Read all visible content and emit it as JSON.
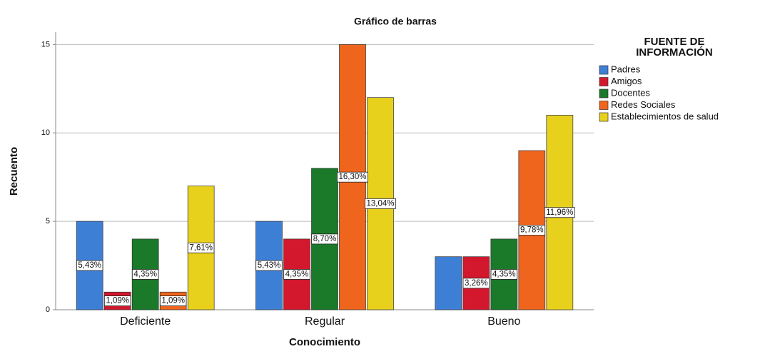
{
  "chart_data": {
    "type": "bar",
    "title": "Gráfico de barras",
    "x_label": "Conocimiento",
    "y_label": "Recuento",
    "legend_title": [
      "FUENTE DE",
      "INFORMACIÓN"
    ],
    "legend": "right",
    "grid": true,
    "categories": [
      "Deficiente",
      "Regular",
      "Bueno"
    ],
    "ylim": [
      0,
      15.7
    ],
    "yticks": [
      0,
      5,
      10,
      15
    ],
    "series": [
      {
        "name": "Padres",
        "color": "#3e7fd6",
        "values": [
          5,
          5,
          3
        ],
        "value_labels": [
          "5,43%",
          "5,43%",
          null
        ]
      },
      {
        "name": "Amigos",
        "color": "#d3182e",
        "values": [
          1,
          4,
          3
        ],
        "value_labels": [
          "1,09%",
          "4,35%",
          "3,26%"
        ]
      },
      {
        "name": "Docentes",
        "color": "#1a7a2a",
        "values": [
          4,
          8,
          4
        ],
        "value_labels": [
          "4,35%",
          "8,70%",
          "4,35%"
        ]
      },
      {
        "name": "Redes Sociales",
        "color": "#f0651e",
        "values": [
          1,
          15,
          9
        ],
        "value_labels": [
          "1,09%",
          "16,30%",
          "9,78%"
        ]
      },
      {
        "name": "Establecimientos de salud",
        "color": "#e8d11c",
        "values": [
          7,
          12,
          11
        ],
        "value_labels": [
          "7,61%",
          "13,04%",
          "11,96%"
        ]
      }
    ]
  }
}
